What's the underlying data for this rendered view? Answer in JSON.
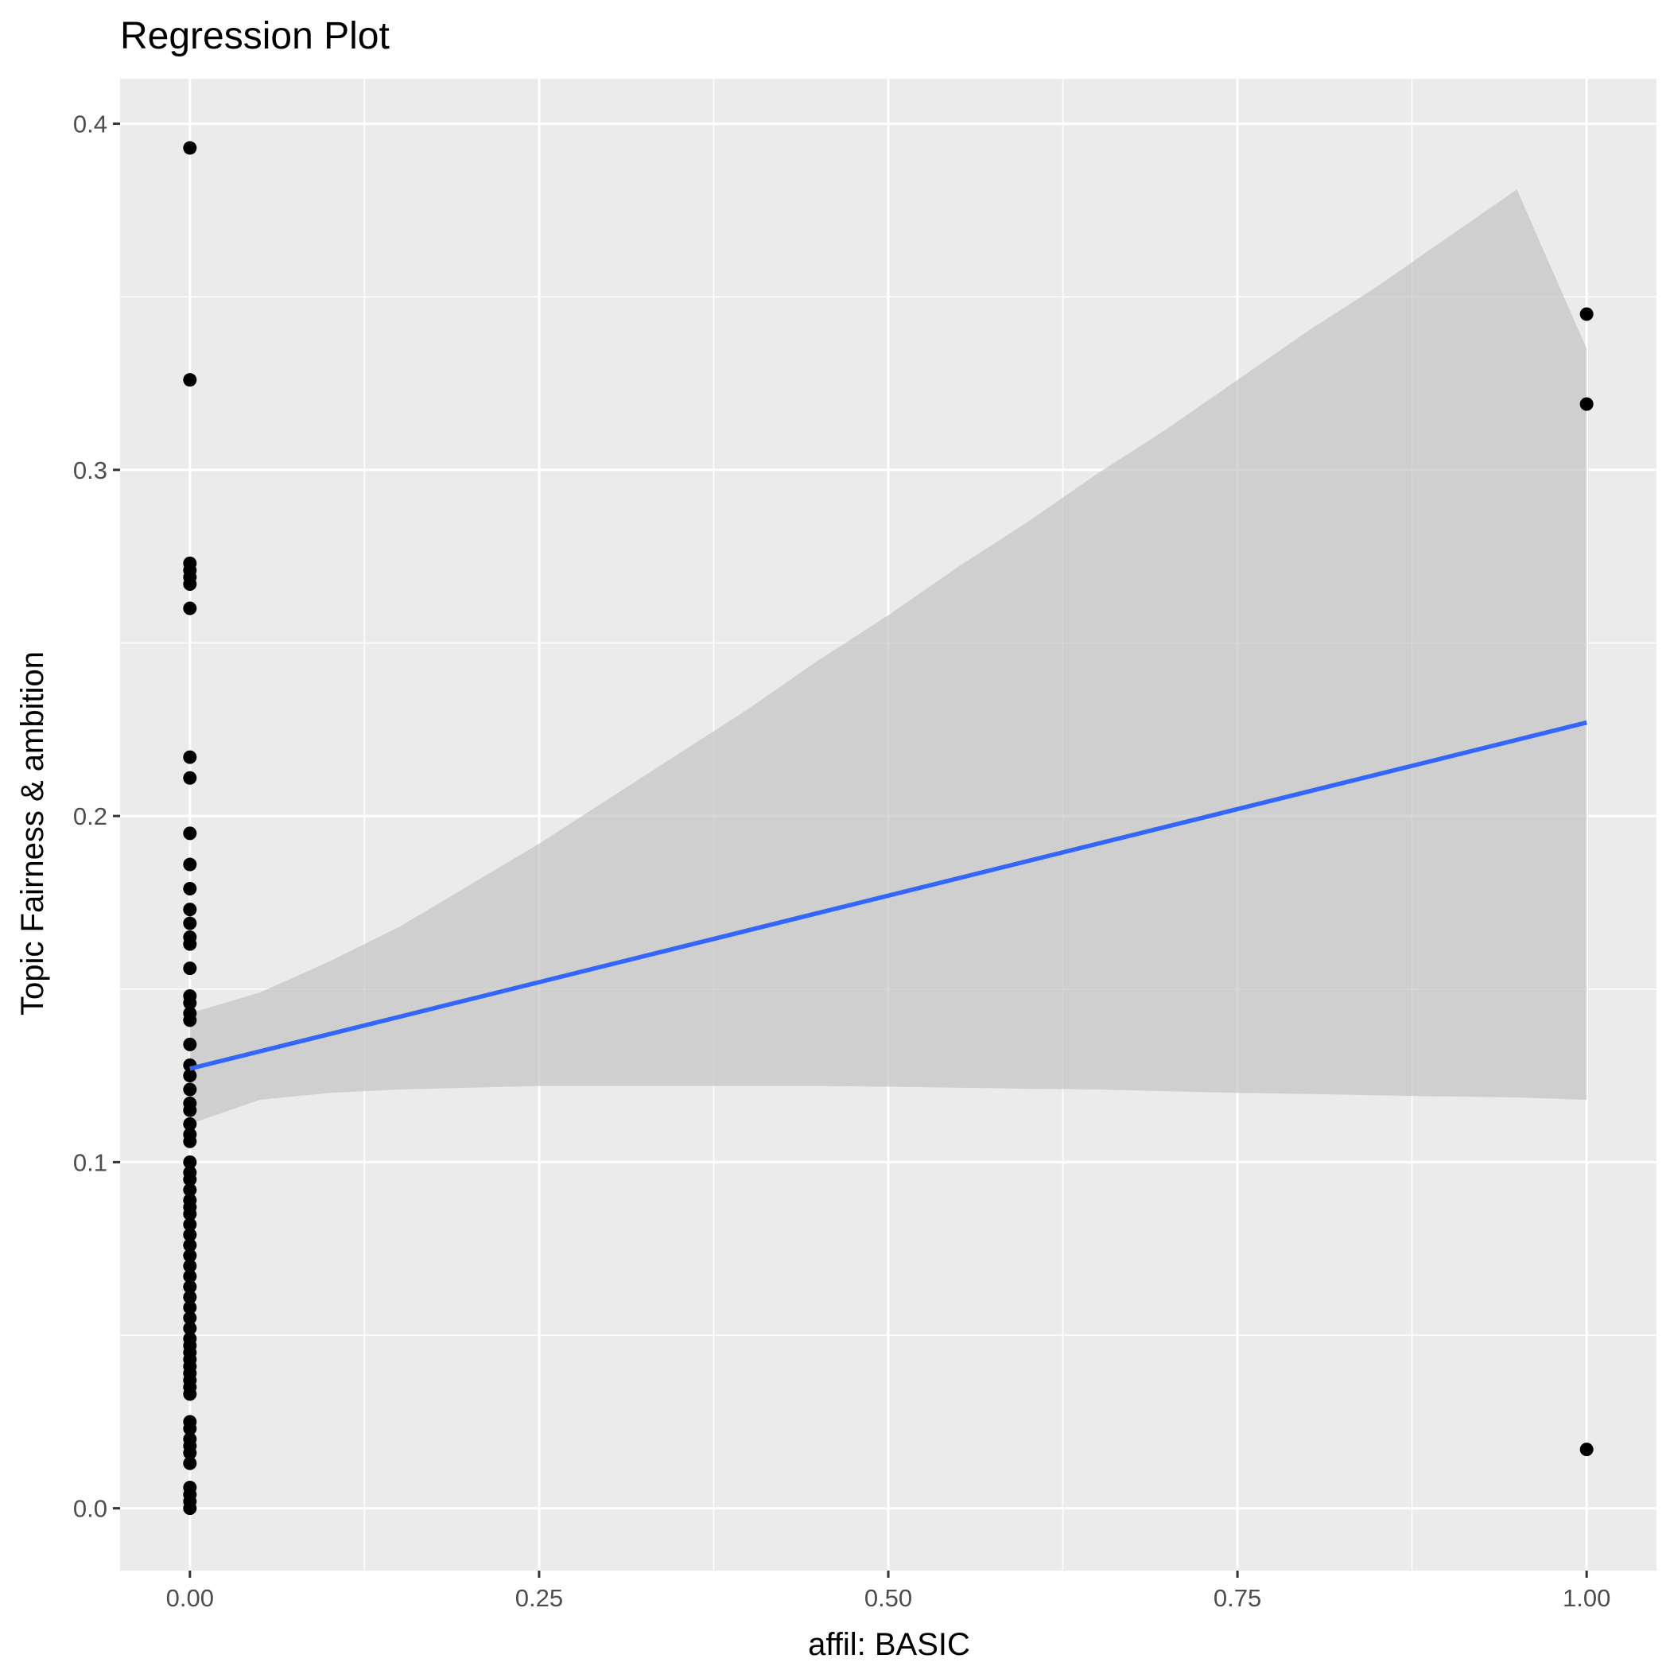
{
  "chart_data": {
    "type": "scatter",
    "title": "Regression Plot",
    "xlabel": "affil: BASIC",
    "ylabel": "Topic Fairness & ambition",
    "xlim": [
      -0.05,
      1.05
    ],
    "ylim": [
      -0.018,
      0.413
    ],
    "x_ticks": [
      0.0,
      0.25,
      0.5,
      0.75,
      1.0
    ],
    "x_tick_labels": [
      "0.00",
      "0.25",
      "0.50",
      "0.75",
      "1.00"
    ],
    "y_ticks": [
      0.0,
      0.1,
      0.2,
      0.3,
      0.4
    ],
    "y_tick_labels": [
      "0.0",
      "0.1",
      "0.2",
      "0.3",
      "0.4"
    ],
    "grid": true,
    "colors": {
      "panel": "#ebebeb",
      "grid": "#ffffff",
      "points": "#000000",
      "line": "#3366ff",
      "band": "#c0c0c0"
    },
    "points": [
      {
        "x": 0,
        "y": 0.393
      },
      {
        "x": 0,
        "y": 0.326
      },
      {
        "x": 0,
        "y": 0.273
      },
      {
        "x": 0,
        "y": 0.271
      },
      {
        "x": 0,
        "y": 0.269
      },
      {
        "x": 0,
        "y": 0.267
      },
      {
        "x": 0,
        "y": 0.26
      },
      {
        "x": 0,
        "y": 0.217
      },
      {
        "x": 0,
        "y": 0.211
      },
      {
        "x": 0,
        "y": 0.195
      },
      {
        "x": 0,
        "y": 0.186
      },
      {
        "x": 0,
        "y": 0.179
      },
      {
        "x": 0,
        "y": 0.173
      },
      {
        "x": 0,
        "y": 0.169
      },
      {
        "x": 0,
        "y": 0.165
      },
      {
        "x": 0,
        "y": 0.163
      },
      {
        "x": 0,
        "y": 0.156
      },
      {
        "x": 0,
        "y": 0.148
      },
      {
        "x": 0,
        "y": 0.146
      },
      {
        "x": 0,
        "y": 0.143
      },
      {
        "x": 0,
        "y": 0.141
      },
      {
        "x": 0,
        "y": 0.134
      },
      {
        "x": 0,
        "y": 0.128
      },
      {
        "x": 0,
        "y": 0.125
      },
      {
        "x": 0,
        "y": 0.121
      },
      {
        "x": 0,
        "y": 0.117
      },
      {
        "x": 0,
        "y": 0.115
      },
      {
        "x": 0,
        "y": 0.111
      },
      {
        "x": 0,
        "y": 0.108
      },
      {
        "x": 0,
        "y": 0.106
      },
      {
        "x": 0,
        "y": 0.1
      },
      {
        "x": 0,
        "y": 0.097
      },
      {
        "x": 0,
        "y": 0.095
      },
      {
        "x": 0,
        "y": 0.092
      },
      {
        "x": 0,
        "y": 0.089
      },
      {
        "x": 0,
        "y": 0.087
      },
      {
        "x": 0,
        "y": 0.085
      },
      {
        "x": 0,
        "y": 0.082
      },
      {
        "x": 0,
        "y": 0.079
      },
      {
        "x": 0,
        "y": 0.076
      },
      {
        "x": 0,
        "y": 0.073
      },
      {
        "x": 0,
        "y": 0.07
      },
      {
        "x": 0,
        "y": 0.067
      },
      {
        "x": 0,
        "y": 0.064
      },
      {
        "x": 0,
        "y": 0.061
      },
      {
        "x": 0,
        "y": 0.058
      },
      {
        "x": 0,
        "y": 0.055
      },
      {
        "x": 0,
        "y": 0.052
      },
      {
        "x": 0,
        "y": 0.049
      },
      {
        "x": 0,
        "y": 0.047
      },
      {
        "x": 0,
        "y": 0.045
      },
      {
        "x": 0,
        "y": 0.043
      },
      {
        "x": 0,
        "y": 0.041
      },
      {
        "x": 0,
        "y": 0.039
      },
      {
        "x": 0,
        "y": 0.037
      },
      {
        "x": 0,
        "y": 0.035
      },
      {
        "x": 0,
        "y": 0.033
      },
      {
        "x": 0,
        "y": 0.025
      },
      {
        "x": 0,
        "y": 0.023
      },
      {
        "x": 0,
        "y": 0.02
      },
      {
        "x": 0,
        "y": 0.018
      },
      {
        "x": 0,
        "y": 0.016
      },
      {
        "x": 0,
        "y": 0.013
      },
      {
        "x": 0,
        "y": 0.006
      },
      {
        "x": 0,
        "y": 0.004
      },
      {
        "x": 0,
        "y": 0.002
      },
      {
        "x": 0,
        "y": 0.0
      },
      {
        "x": 1,
        "y": 0.345
      },
      {
        "x": 1,
        "y": 0.319
      },
      {
        "x": 1,
        "y": 0.017
      }
    ],
    "fit_line": {
      "x": [
        0,
        1
      ],
      "y": [
        0.127,
        0.227
      ]
    },
    "confidence_band": {
      "x": [
        0,
        0.05,
        0.1,
        0.15,
        0.2,
        0.25,
        0.3,
        0.35,
        0.4,
        0.45,
        0.5,
        0.55,
        0.6,
        0.65,
        0.7,
        0.75,
        0.8,
        0.85,
        0.9,
        0.95,
        1.0
      ],
      "upper": [
        0.143,
        0.149,
        0.158,
        0.168,
        0.18,
        0.192,
        0.205,
        0.218,
        0.231,
        0.245,
        0.258,
        0.272,
        0.285,
        0.299,
        0.312,
        0.326,
        0.34,
        0.353,
        0.367,
        0.381,
        0.335
      ],
      "lower": [
        0.111,
        0.118,
        0.12,
        0.121,
        0.1215,
        0.122,
        0.122,
        0.122,
        0.122,
        0.122,
        0.1218,
        0.1215,
        0.1212,
        0.121,
        0.1205,
        0.12,
        0.1197,
        0.1193,
        0.119,
        0.1187,
        0.118
      ]
    }
  }
}
